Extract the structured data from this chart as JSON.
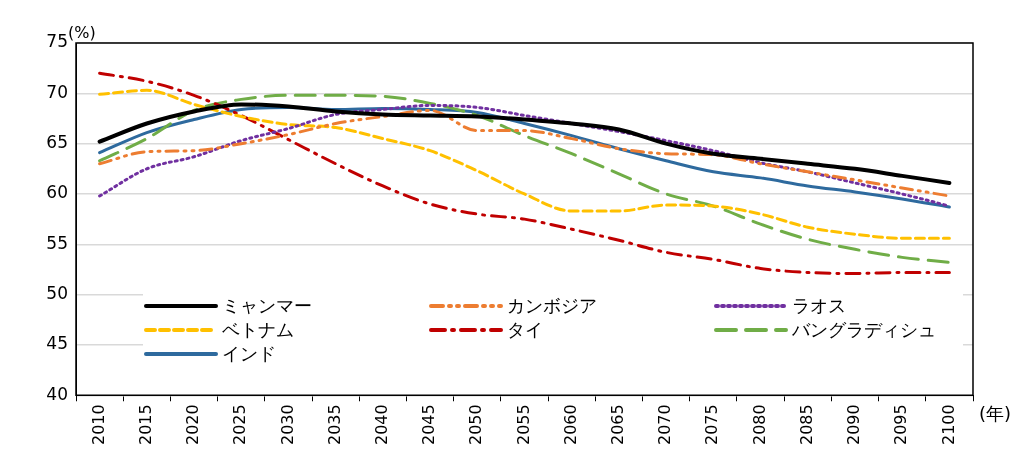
{
  "chart_data": {
    "type": "line",
    "ylabel": "(%)",
    "xlabel": "(年)",
    "categories": [
      "2010",
      "2015",
      "2020",
      "2025",
      "2030",
      "2035",
      "2040",
      "2045",
      "2050",
      "2055",
      "2060",
      "2065",
      "2070",
      "2075",
      "2080",
      "2085",
      "2090",
      "2095",
      "2100"
    ],
    "ylim": [
      40,
      75
    ],
    "yticks": [
      40,
      45,
      50,
      55,
      60,
      65,
      70,
      75
    ],
    "grid": "y",
    "legend": "bottom",
    "marker": "none",
    "series": [
      {
        "name": "ミャンマー",
        "color": "#000000",
        "line_style": "solid",
        "values": [
          65.2,
          67.0,
          68.2,
          68.9,
          68.7,
          68.2,
          67.9,
          67.8,
          67.7,
          67.4,
          67.0,
          66.4,
          65.0,
          64.0,
          63.5,
          63.0,
          62.5,
          61.8,
          61.1
        ]
      },
      {
        "name": "カンボジア",
        "color": "#ed7d31",
        "line_style": "dashdotdot",
        "values": [
          63.0,
          64.2,
          64.3,
          65.0,
          65.9,
          67.0,
          67.7,
          68.3,
          66.3,
          66.3,
          65.5,
          64.5,
          64.0,
          63.9,
          63.0,
          62.2,
          61.4,
          60.6,
          59.8
        ]
      },
      {
        "name": "ラオス",
        "color": "#7030a0",
        "line_style": "dotted",
        "values": [
          59.8,
          62.5,
          63.7,
          65.3,
          66.5,
          67.9,
          68.4,
          68.8,
          68.6,
          67.8,
          67.0,
          66.2,
          65.3,
          64.3,
          63.1,
          62.2,
          61.1,
          60.0,
          58.8
        ]
      },
      {
        "name": "ベトナム",
        "color": "#ffc000",
        "line_style": "dashed",
        "values": [
          69.9,
          70.3,
          68.9,
          67.7,
          66.9,
          66.6,
          65.5,
          64.3,
          62.3,
          60.0,
          58.3,
          58.3,
          58.9,
          58.8,
          58.0,
          56.7,
          56.0,
          55.6,
          55.6
        ]
      },
      {
        "name": "タイ",
        "color": "#c00000",
        "line_style": "dashdot",
        "values": [
          72.0,
          71.2,
          69.8,
          67.8,
          65.4,
          63.0,
          60.8,
          59.0,
          58.0,
          57.5,
          56.5,
          55.4,
          54.2,
          53.5,
          52.6,
          52.2,
          52.1,
          52.2,
          52.2
        ]
      },
      {
        "name": "バングラディシュ",
        "color": "#70ad47",
        "line_style": "longdash",
        "values": [
          63.3,
          65.5,
          68.3,
          69.4,
          69.8,
          69.8,
          69.7,
          69.0,
          67.8,
          65.8,
          64.0,
          62.0,
          60.0,
          58.8,
          57.0,
          55.5,
          54.5,
          53.7,
          53.2
        ]
      },
      {
        "name": "インド",
        "color": "#2e6a9e",
        "line_style": "solid",
        "values": [
          64.1,
          66.1,
          67.4,
          68.4,
          68.6,
          68.4,
          68.5,
          68.4,
          68.1,
          67.0,
          65.8,
          64.5,
          63.3,
          62.2,
          61.6,
          60.8,
          60.2,
          59.5,
          58.7
        ]
      }
    ]
  }
}
